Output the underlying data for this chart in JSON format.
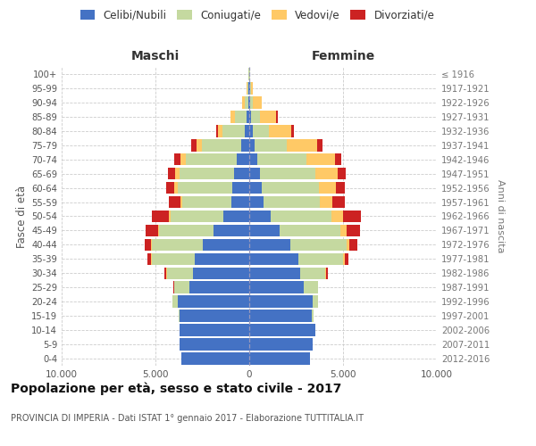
{
  "age_groups": [
    "0-4",
    "5-9",
    "10-14",
    "15-19",
    "20-24",
    "25-29",
    "30-34",
    "35-39",
    "40-44",
    "45-49",
    "50-54",
    "55-59",
    "60-64",
    "65-69",
    "70-74",
    "75-79",
    "80-84",
    "85-89",
    "90-94",
    "95-99",
    "100+"
  ],
  "birth_years": [
    "2012-2016",
    "2007-2011",
    "2002-2006",
    "1997-2001",
    "1992-1996",
    "1987-1991",
    "1982-1986",
    "1977-1981",
    "1972-1976",
    "1967-1971",
    "1962-1966",
    "1957-1961",
    "1952-1956",
    "1947-1951",
    "1942-1946",
    "1937-1941",
    "1932-1936",
    "1927-1931",
    "1922-1926",
    "1917-1921",
    "≤ 1916"
  ],
  "males": {
    "celibi": [
      3600,
      3700,
      3700,
      3700,
      3800,
      3200,
      3000,
      2900,
      2500,
      1900,
      1400,
      950,
      900,
      800,
      680,
      430,
      230,
      130,
      60,
      30,
      10
    ],
    "coniugati": [
      3,
      5,
      20,
      80,
      300,
      800,
      1400,
      2300,
      2700,
      2900,
      2800,
      2600,
      2900,
      2900,
      2700,
      2100,
      1200,
      650,
      200,
      60,
      20
    ],
    "vedovi": [
      0,
      0,
      0,
      1,
      2,
      5,
      10,
      20,
      40,
      60,
      80,
      120,
      180,
      250,
      280,
      300,
      250,
      200,
      120,
      50,
      10
    ],
    "divorziati": [
      0,
      0,
      0,
      3,
      10,
      30,
      100,
      200,
      350,
      650,
      900,
      620,
      450,
      380,
      320,
      250,
      100,
      40,
      20,
      10,
      5
    ]
  },
  "females": {
    "nubili": [
      3250,
      3400,
      3500,
      3350,
      3400,
      2900,
      2700,
      2600,
      2200,
      1600,
      1150,
      780,
      680,
      580,
      450,
      300,
      180,
      100,
      60,
      30,
      10
    ],
    "coniugate": [
      2,
      3,
      10,
      60,
      250,
      750,
      1350,
      2400,
      3000,
      3250,
      3250,
      3000,
      3050,
      2950,
      2600,
      1700,
      850,
      450,
      150,
      50,
      15
    ],
    "vedove": [
      0,
      0,
      0,
      2,
      5,
      10,
      30,
      80,
      150,
      350,
      600,
      650,
      900,
      1200,
      1500,
      1600,
      1200,
      900,
      450,
      120,
      30
    ],
    "divorziate": [
      0,
      0,
      0,
      3,
      10,
      30,
      100,
      200,
      400,
      700,
      950,
      650,
      480,
      400,
      350,
      300,
      150,
      50,
      20,
      10,
      3
    ]
  },
  "colors": {
    "celibi": "#4472c4",
    "coniugati": "#c5d9a0",
    "vedovi": "#ffc966",
    "divorziati": "#cc2222"
  },
  "xlim": 10000,
  "title": "Popolazione per età, sesso e stato civile - 2017",
  "subtitle": "PROVINCIA DI IMPERIA - Dati ISTAT 1° gennaio 2017 - Elaborazione TUTTITALIA.IT",
  "ylabel": "Fasce di età",
  "ylabel_right": "Anni di nascita"
}
